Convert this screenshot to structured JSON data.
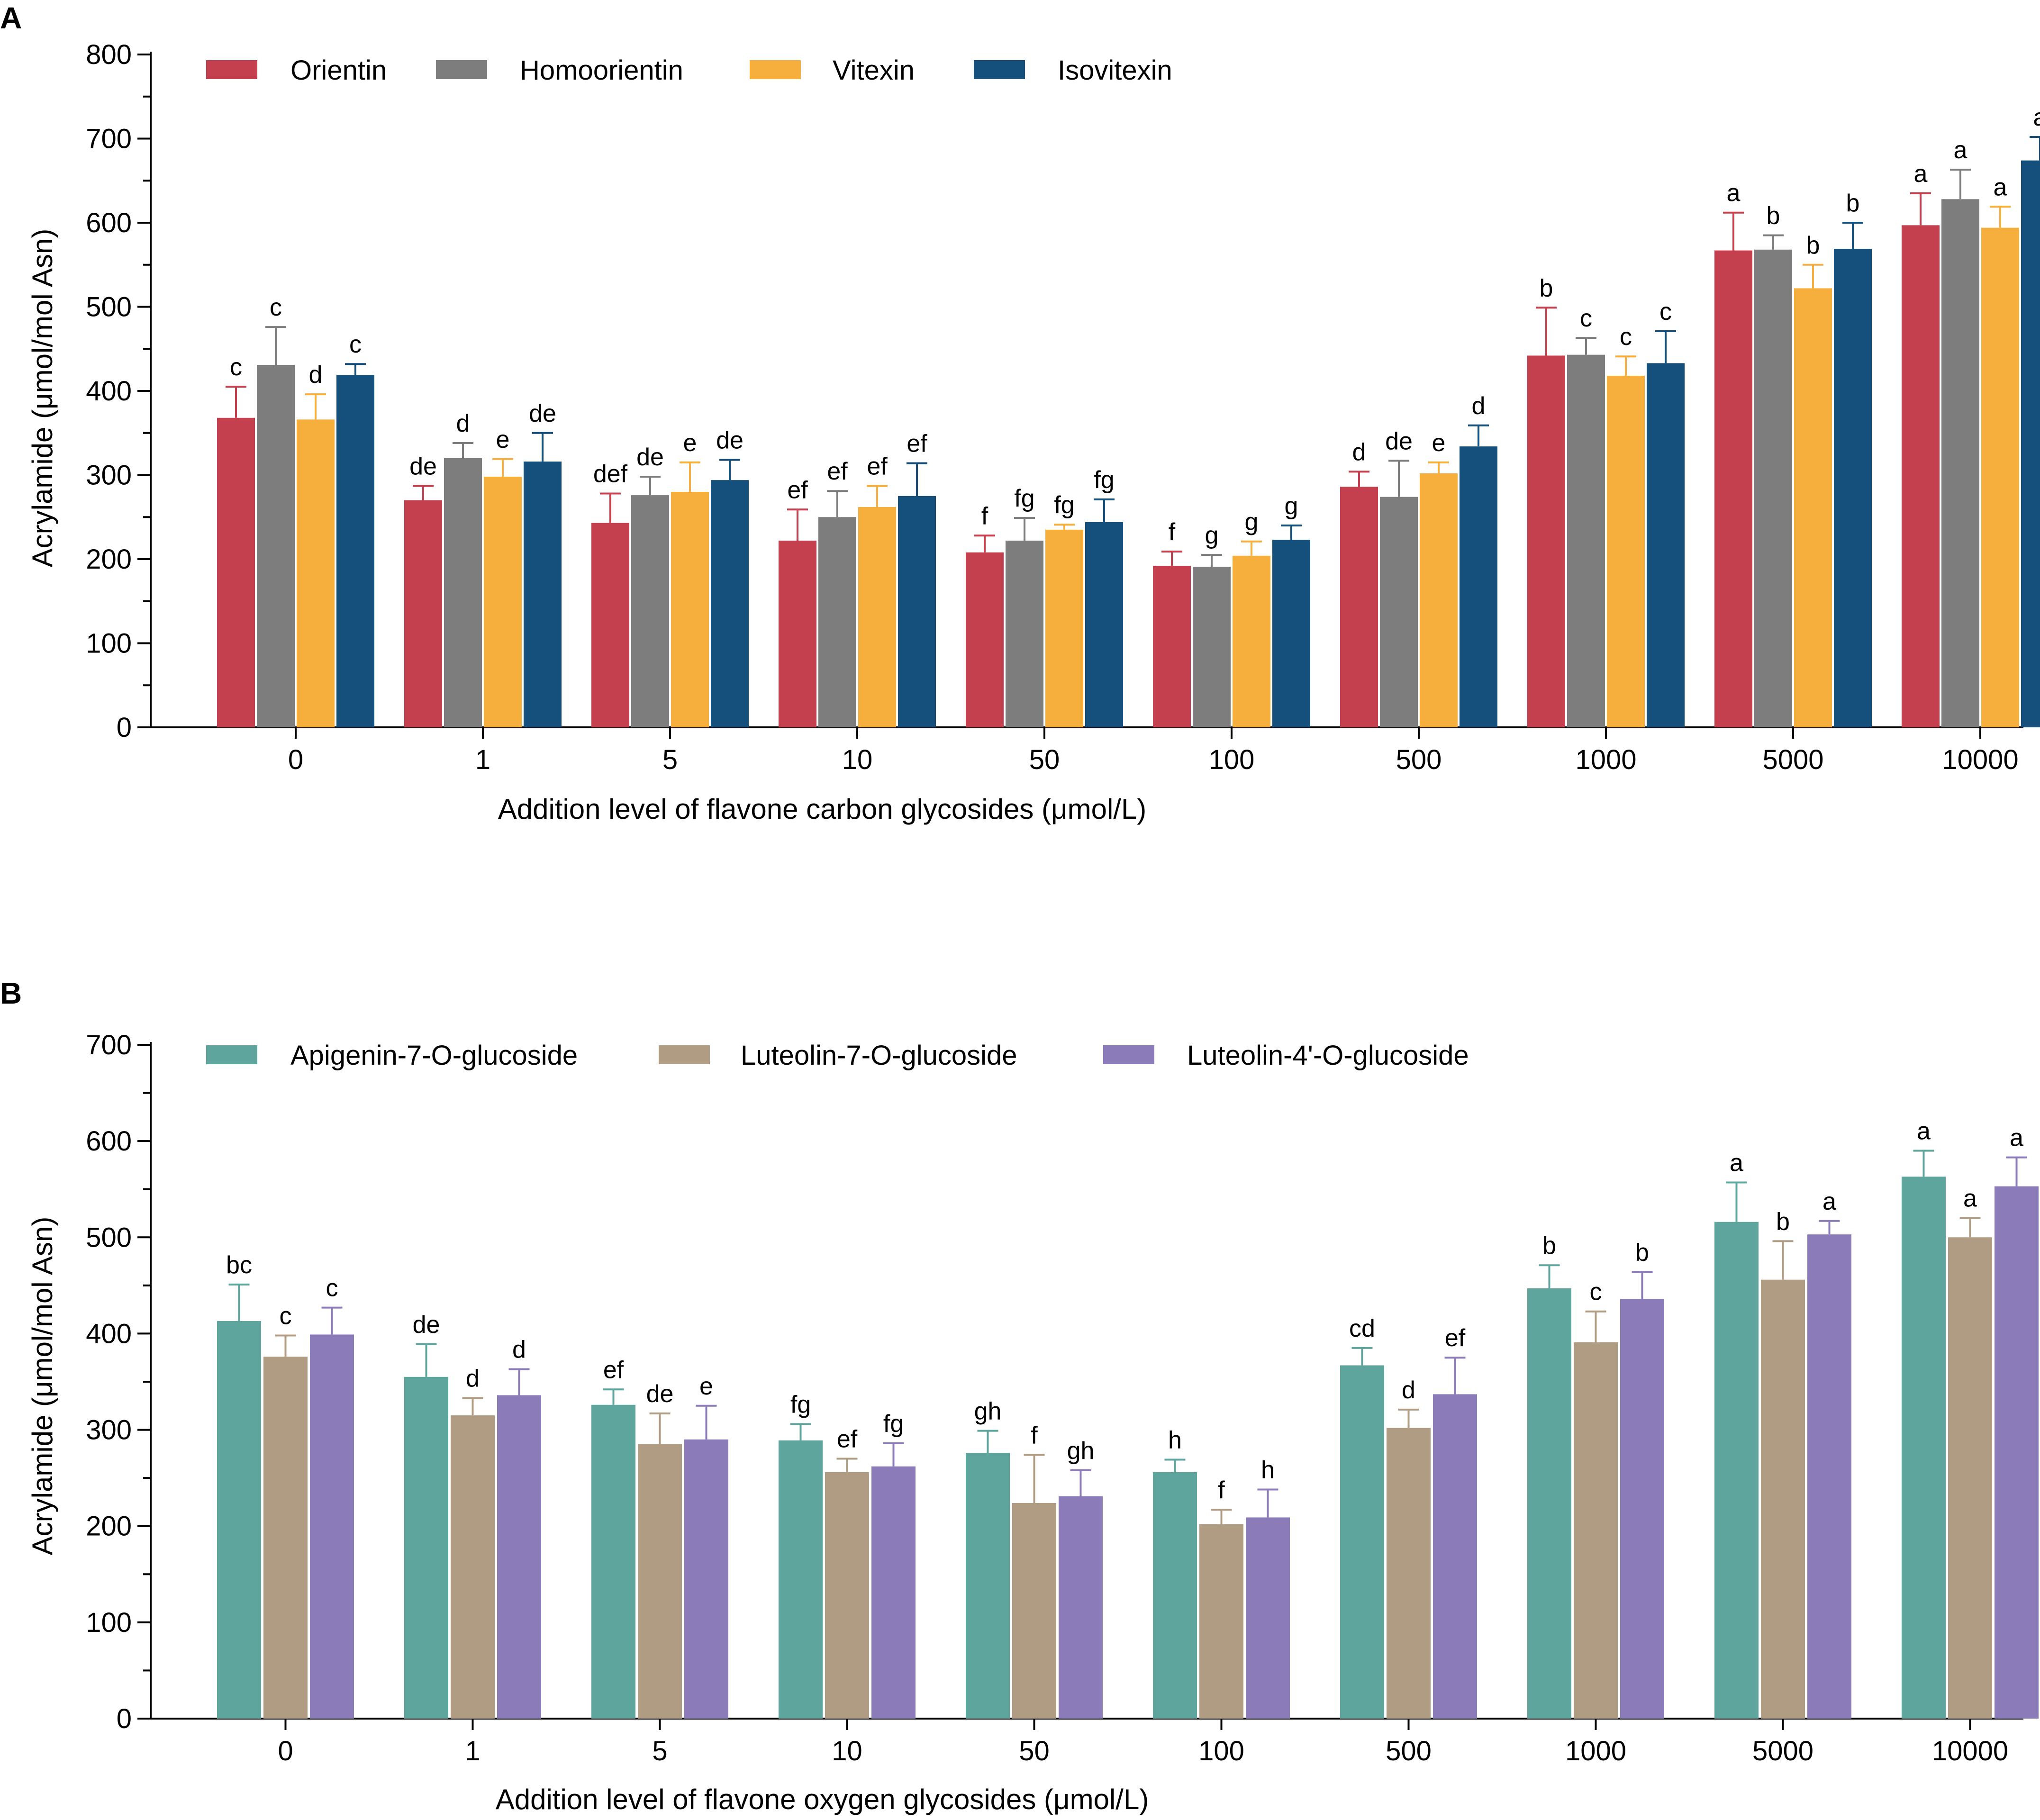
{
  "chart_data": [
    {
      "panel": "A",
      "type": "bar",
      "title": "",
      "xlabel": "Addition level of flavone carbon glycosides (μmol/L)",
      "ylabel": "Acrylamide (μmol/mol Asn)",
      "ylim": [
        0,
        800
      ],
      "yticks": [
        0,
        100,
        200,
        300,
        400,
        500,
        600,
        700,
        800
      ],
      "categories": [
        "0",
        "1",
        "5",
        "10",
        "50",
        "100",
        "500",
        "1000",
        "5000",
        "10000"
      ],
      "legend_position": "top-left",
      "series": [
        {
          "name": "Orientin",
          "color": "#c5404f",
          "values": [
            368,
            270,
            243,
            222,
            208,
            192,
            286,
            442,
            567,
            597
          ],
          "errors": [
            37,
            17,
            35,
            37,
            20,
            17,
            18,
            57,
            45,
            38
          ],
          "labels": [
            "c",
            "de",
            "def",
            "ef",
            "f",
            "f",
            "d",
            "b",
            "a",
            "a"
          ]
        },
        {
          "name": "Homoorientin",
          "color": "#7d7d7d",
          "values": [
            431,
            320,
            276,
            250,
            222,
            191,
            274,
            443,
            568,
            628
          ],
          "errors": [
            45,
            18,
            22,
            31,
            27,
            14,
            43,
            20,
            17,
            35
          ],
          "labels": [
            "c",
            "d",
            "de",
            "ef",
            "fg",
            "g",
            "de",
            "c",
            "b",
            "a"
          ]
        },
        {
          "name": "Vitexin",
          "color": "#f6ae3c",
          "values": [
            366,
            298,
            280,
            262,
            235,
            204,
            302,
            418,
            522,
            594
          ],
          "errors": [
            30,
            21,
            35,
            25,
            6,
            17,
            13,
            23,
            28,
            25
          ],
          "labels": [
            "d",
            "e",
            "e",
            "ef",
            "fg",
            "g",
            "e",
            "c",
            "b",
            "a"
          ]
        },
        {
          "name": "Isovitexin",
          "color": "#154f7b",
          "values": [
            419,
            316,
            294,
            275,
            244,
            223,
            334,
            433,
            569,
            674
          ],
          "errors": [
            13,
            34,
            24,
            39,
            27,
            17,
            25,
            38,
            31,
            28
          ],
          "labels": [
            "c",
            "de",
            "de",
            "ef",
            "fg",
            "g",
            "d",
            "c",
            "b",
            "a"
          ]
        }
      ]
    },
    {
      "panel": "B",
      "type": "bar",
      "title": "",
      "xlabel": "Addition level of flavone oxygen glycosides (μmol/L)",
      "ylabel": "Acrylamide (μmol/mol Asn)",
      "ylim": [
        0,
        700
      ],
      "yticks": [
        0,
        100,
        200,
        300,
        400,
        500,
        600,
        700
      ],
      "categories": [
        "0",
        "1",
        "5",
        "10",
        "50",
        "100",
        "500",
        "1000",
        "5000",
        "10000"
      ],
      "legend_position": "top-left",
      "series": [
        {
          "name": "Apigenin-7-O-glucoside",
          "color": "#5ea69d",
          "values": [
            413,
            355,
            326,
            289,
            276,
            256,
            367,
            447,
            516,
            563
          ],
          "errors": [
            38,
            34,
            16,
            17,
            23,
            13,
            18,
            24,
            41,
            27
          ],
          "labels": [
            "bc",
            "de",
            "ef",
            "fg",
            "gh",
            "h",
            "cd",
            "b",
            "a",
            "a"
          ]
        },
        {
          "name": "Luteolin-7-O-glucoside",
          "color": "#b09c83",
          "values": [
            376,
            315,
            285,
            256,
            224,
            202,
            302,
            391,
            456,
            500
          ],
          "errors": [
            22,
            18,
            32,
            14,
            50,
            15,
            19,
            32,
            40,
            20
          ],
          "labels": [
            "c",
            "d",
            "de",
            "ef",
            "f",
            "f",
            "d",
            "c",
            "b",
            "a"
          ]
        },
        {
          "name": "Luteolin-4'-O-glucoside",
          "color": "#8c7bb9",
          "values": [
            399,
            336,
            290,
            262,
            231,
            209,
            337,
            436,
            503,
            553
          ],
          "errors": [
            28,
            27,
            35,
            24,
            27,
            29,
            38,
            28,
            14,
            30
          ],
          "labels": [
            "c",
            "d",
            "e",
            "fg",
            "gh",
            "h",
            "ef",
            "b",
            "a",
            "a"
          ]
        }
      ]
    }
  ]
}
